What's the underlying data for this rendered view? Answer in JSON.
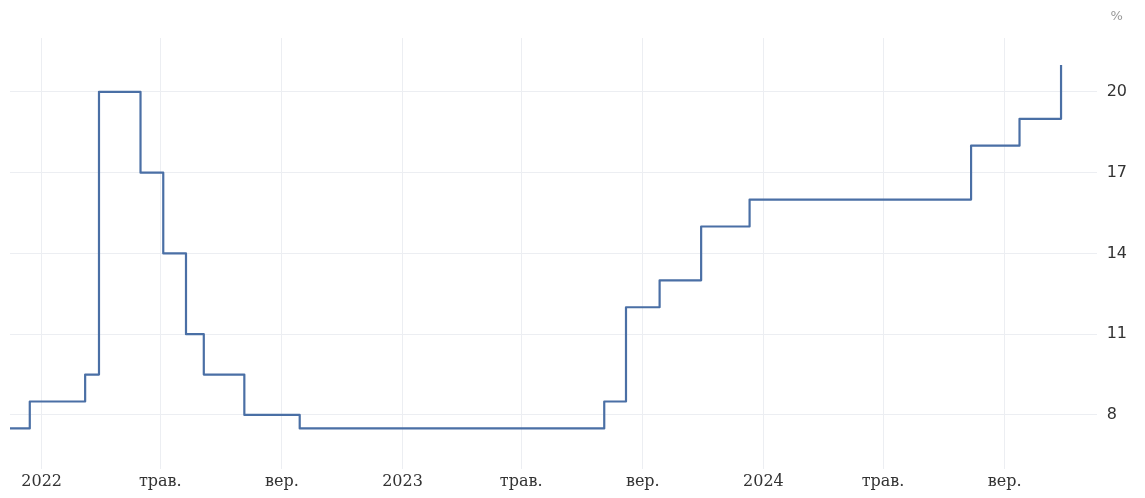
{
  "chart_data": {
    "type": "step",
    "ylabel": "%",
    "x": [
      "2021-11-30",
      "2021-12-20",
      "2022-02-14",
      "2022-02-28",
      "2022-04-11",
      "2022-05-04",
      "2022-05-27",
      "2022-06-14",
      "2022-07-25",
      "2022-09-19",
      "2023-07-24",
      "2023-08-15",
      "2023-09-18",
      "2023-10-30",
      "2023-12-18",
      "2024-07-29",
      "2024-09-16",
      "2024-10-28"
    ],
    "series": [
      {
        "color": "#4a6fa5",
        "values": [
          7.5,
          8.5,
          9.5,
          20,
          17,
          14,
          11,
          9.5,
          8,
          7.5,
          8.5,
          12,
          13,
          15,
          16,
          18,
          19,
          21
        ]
      }
    ],
    "xlim": [
      "2021-11-30",
      "2024-12-03"
    ],
    "xticks": [
      {
        "value": "2022-01-01",
        "label": "2022"
      },
      {
        "value": "2022-05-01",
        "label": "трав."
      },
      {
        "value": "2022-09-01",
        "label": "вер."
      },
      {
        "value": "2023-01-01",
        "label": "2023"
      },
      {
        "value": "2023-05-01",
        "label": "трав."
      },
      {
        "value": "2023-09-01",
        "label": "вер."
      },
      {
        "value": "2024-01-01",
        "label": "2024"
      },
      {
        "value": "2024-05-01",
        "label": "трав."
      },
      {
        "value": "2024-09-01",
        "label": "вер."
      }
    ],
    "ylim": [
      6,
      22
    ],
    "yticks": [
      8,
      11,
      14,
      17,
      20
    ],
    "grid": true,
    "legend": false,
    "marker": "none",
    "line_style": "solid"
  }
}
